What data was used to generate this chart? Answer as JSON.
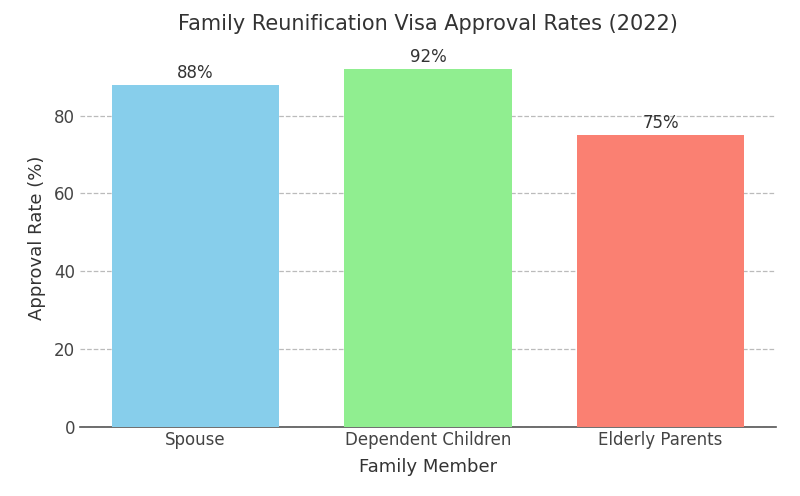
{
  "title": "Family Reunification Visa Approval Rates (2022)",
  "xlabel": "Family Member",
  "ylabel": "Approval Rate (%)",
  "categories": [
    "Spouse",
    "Dependent Children",
    "Elderly Parents"
  ],
  "values": [
    88,
    92,
    75
  ],
  "bar_colors": [
    "#87CEEB",
    "#90EE90",
    "#FA8072"
  ],
  "bar_labels": [
    "88%",
    "92%",
    "75%"
  ],
  "ylim": [
    0,
    97
  ],
  "yticks": [
    0,
    20,
    40,
    60,
    80
  ],
  "grid_color": "#bbbbbb",
  "grid_style": "--",
  "background_color": "#ffffff",
  "title_fontsize": 15,
  "label_fontsize": 13,
  "tick_fontsize": 12,
  "bar_label_fontsize": 12,
  "bar_width": 0.72
}
